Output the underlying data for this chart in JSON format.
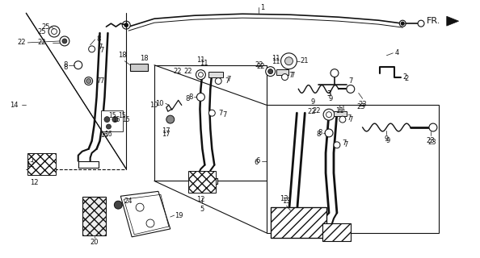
{
  "bg_color": "#ffffff",
  "fig_width": 5.94,
  "fig_height": 3.2,
  "dpi": 100,
  "fr_label": "FR."
}
